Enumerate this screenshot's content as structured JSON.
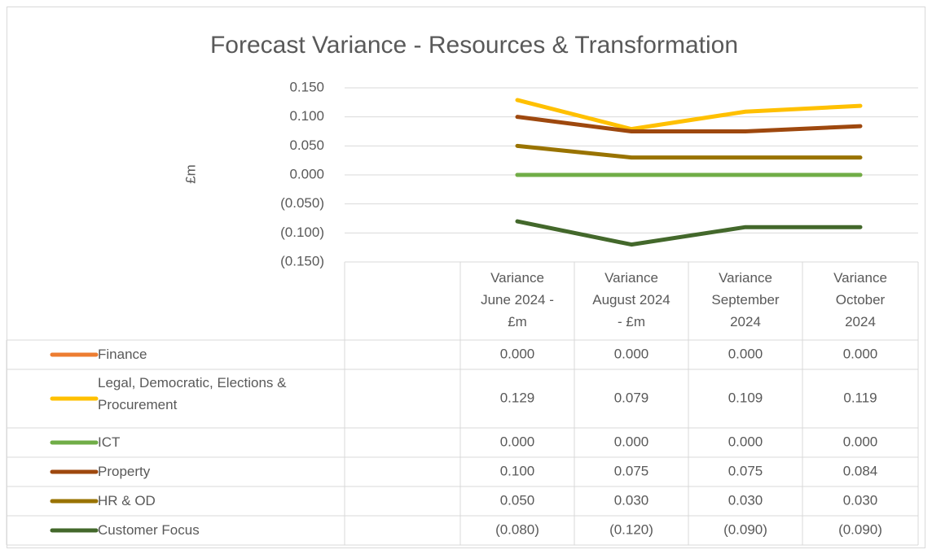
{
  "chart_data": {
    "type": "line",
    "title": "Forecast Variance - Resources & Transformation",
    "y_label": "£m",
    "categories": [
      null,
      "Variance June 2024 - £m",
      "Variance August 2024 - £m",
      "Variance September 2024",
      "Variance October 2024"
    ],
    "series": [
      {
        "name": "Finance",
        "color": "#ED7D31",
        "values": [
          null,
          0,
          0,
          0,
          0
        ],
        "value_labels": [
          null,
          "0.000",
          "0.000",
          "0.000",
          "0.000"
        ]
      },
      {
        "name": "Legal, Democratic, Elections & Procurement",
        "color": "#FFC000",
        "values": [
          null,
          0.129,
          0.079,
          0.109,
          0.119
        ],
        "value_labels": [
          null,
          "0.129",
          "0.079",
          "0.109",
          "0.119"
        ]
      },
      {
        "name": "ICT",
        "color": "#70AD47",
        "values": [
          null,
          0,
          0,
          0,
          0
        ],
        "value_labels": [
          null,
          "0.000",
          "0.000",
          "0.000",
          "0.000"
        ]
      },
      {
        "name": "Property",
        "color": "#9E480E",
        "values": [
          null,
          0.1,
          0.075,
          0.075,
          0.084
        ],
        "value_labels": [
          null,
          "0.100",
          "0.075",
          "0.075",
          "0.084"
        ]
      },
      {
        "name": "HR & OD",
        "color": "#997300",
        "values": [
          null,
          0.05,
          0.03,
          0.03,
          0.03
        ],
        "value_labels": [
          null,
          "0.050",
          "0.030",
          "0.030",
          "0.030"
        ]
      },
      {
        "name": "Customer Focus",
        "color": "#43682B",
        "values": [
          null,
          -0.08,
          -0.12,
          -0.09,
          -0.09
        ],
        "value_labels": [
          null,
          "(0.080)",
          "(0.120)",
          "(0.090)",
          "(0.090)"
        ]
      }
    ],
    "ylim": [
      -0.15,
      0.15
    ],
    "yticks": [
      {
        "value": 0.15,
        "label": "0.150"
      },
      {
        "value": 0.1,
        "label": "0.100"
      },
      {
        "value": 0.05,
        "label": "0.050"
      },
      {
        "value": 0,
        "label": "0.000"
      },
      {
        "value": -0.05,
        "label": "(0.050)"
      },
      {
        "value": -0.1,
        "label": "(0.100)"
      },
      {
        "value": -0.15,
        "label": "(0.150)"
      }
    ],
    "grid": true
  }
}
